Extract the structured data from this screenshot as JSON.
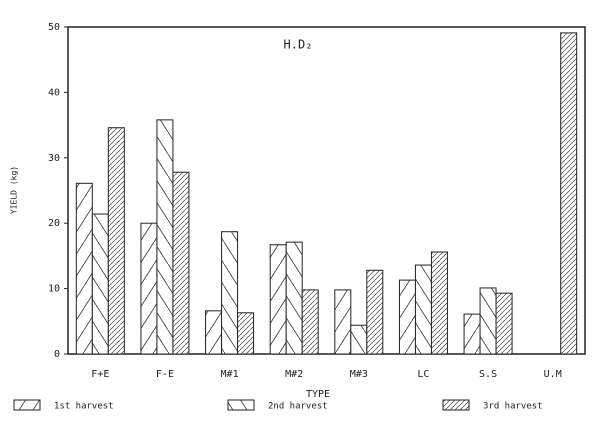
{
  "chart_data": {
    "type": "bar",
    "title": "H.D₂",
    "x_label": "TYPE",
    "y_label": "YIELD (kg)",
    "categories": [
      "F+E",
      "F-E",
      "M#1",
      "M#2",
      "M#3",
      "LC",
      "S.S",
      "U.M"
    ],
    "series": [
      {
        "name": "1st harvest",
        "color": "#222",
        "values": [
          26.1,
          20,
          6.6,
          16.7,
          9.8,
          11.3,
          6.1,
          null
        ]
      },
      {
        "name": "2nd harvest",
        "color": "#222",
        "values": [
          21.4,
          35.8,
          18.7,
          17.1,
          4.4,
          13.6,
          10.1,
          null
        ]
      },
      {
        "name": "3rd harvest",
        "color": "#222",
        "values": [
          34.6,
          27.8,
          6.3,
          9.8,
          12.8,
          15.6,
          9.3,
          49.1
        ]
      }
    ],
    "ylim": [
      0,
      50
    ],
    "yticks": [
      0,
      10,
      20,
      30,
      40,
      50
    ],
    "grid": false,
    "legend": "bottom"
  }
}
